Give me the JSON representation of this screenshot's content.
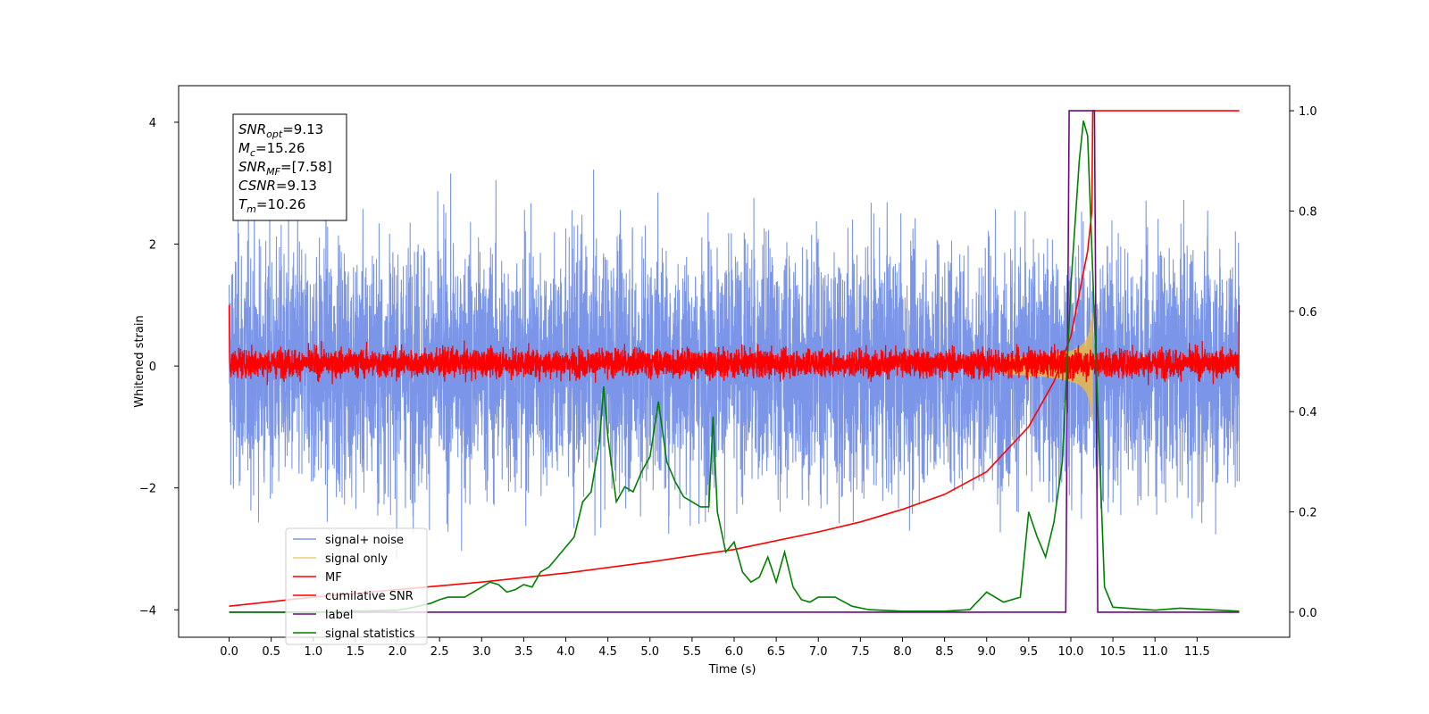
{
  "chart_data": {
    "type": "line",
    "title": "",
    "xlabel": "Time (s)",
    "ylabel": "Whitened strain",
    "ylabel_right": "",
    "xlim": [
      -0.6,
      12.6
    ],
    "ylim": [
      -4.45,
      4.6
    ],
    "ylim_right": [
      -0.05,
      1.05
    ],
    "x_ticks": [
      "0.0",
      "0.5",
      "1.0",
      "1.5",
      "2.0",
      "2.5",
      "3.0",
      "3.5",
      "4.0",
      "4.5",
      "5.0",
      "5.5",
      "6.0",
      "6.5",
      "7.0",
      "7.5",
      "8.0",
      "8.5",
      "9.0",
      "9.5",
      "10.0",
      "10.5",
      "11.0",
      "11.5"
    ],
    "y_ticks": [
      "−4",
      "−2",
      "0",
      "2",
      "4"
    ],
    "y_ticks_right": [
      "0.0",
      "0.2",
      "0.4",
      "0.6",
      "0.8",
      "1.0"
    ],
    "grid": false,
    "legend_position": "lower-left",
    "annotation": {
      "lines": [
        {
          "sym": "SNR",
          "sub": "opt",
          "value": "=9.13"
        },
        {
          "sym": "M",
          "sub": "c",
          "value": "=15.26"
        },
        {
          "sym": "SNR",
          "sub": "MF",
          "value": "=[7.58]"
        },
        {
          "sym": "CSNR",
          "sub": "",
          "value": "=9.13"
        },
        {
          "sym": "T",
          "sub": "m",
          "value": "=10.26"
        }
      ]
    },
    "series": [
      {
        "name": "signal+ noise",
        "axis": "left",
        "color": "#7b96e8",
        "description_range": [
          -3.2,
          4.15
        ],
        "x_range": [
          0,
          12
        ]
      },
      {
        "name": "signal only",
        "axis": "left",
        "color": "#e8b84a",
        "chirp_end": 10.26,
        "max_amplitude": 0.9
      },
      {
        "name": "MF",
        "axis": "left",
        "color": "#ff0000",
        "x_range": [
          0,
          12
        ]
      },
      {
        "name": "cumilative SNR",
        "axis": "right",
        "color": "#ff0000",
        "x": [
          0,
          1,
          2,
          3,
          4,
          5,
          6,
          7,
          7.5,
          8,
          8.5,
          9,
          9.5,
          9.8,
          10.0,
          10.2,
          10.25,
          10.26,
          12
        ],
        "y": [
          0.012,
          0.03,
          0.045,
          0.06,
          0.078,
          0.1,
          0.125,
          0.16,
          0.18,
          0.205,
          0.235,
          0.28,
          0.37,
          0.46,
          0.55,
          0.72,
          0.8,
          1.0,
          1.0
        ]
      },
      {
        "name": "label",
        "axis": "right",
        "color": "#6a0a7a",
        "x": [
          0,
          9.94,
          9.98,
          10.28,
          10.32,
          12
        ],
        "y": [
          0.0,
          0.0,
          1.0,
          1.0,
          0.0,
          0.0
        ]
      },
      {
        "name": "signal statistics",
        "axis": "right",
        "color": "#008000",
        "x": [
          0,
          1.0,
          2.0,
          2.2,
          2.4,
          2.5,
          2.6,
          2.8,
          3.0,
          3.1,
          3.2,
          3.3,
          3.4,
          3.5,
          3.6,
          3.7,
          3.8,
          3.9,
          4.0,
          4.1,
          4.2,
          4.3,
          4.4,
          4.45,
          4.5,
          4.6,
          4.7,
          4.8,
          4.9,
          5.0,
          5.1,
          5.15,
          5.2,
          5.3,
          5.4,
          5.5,
          5.6,
          5.7,
          5.75,
          5.8,
          5.9,
          6.0,
          6.1,
          6.2,
          6.3,
          6.4,
          6.5,
          6.6,
          6.7,
          6.8,
          6.9,
          7.0,
          7.2,
          7.4,
          7.6,
          8.0,
          8.5,
          8.8,
          9.0,
          9.2,
          9.4,
          9.5,
          9.6,
          9.7,
          9.8,
          9.9,
          10.0,
          10.1,
          10.15,
          10.2,
          10.3,
          10.4,
          10.5,
          11.0,
          11.3,
          12
        ],
        "y": [
          0.0,
          0.0,
          0.004,
          0.01,
          0.018,
          0.025,
          0.03,
          0.03,
          0.05,
          0.06,
          0.055,
          0.04,
          0.045,
          0.055,
          0.05,
          0.08,
          0.09,
          0.11,
          0.13,
          0.15,
          0.22,
          0.24,
          0.34,
          0.45,
          0.35,
          0.22,
          0.25,
          0.24,
          0.28,
          0.31,
          0.42,
          0.36,
          0.3,
          0.26,
          0.23,
          0.22,
          0.21,
          0.21,
          0.39,
          0.2,
          0.12,
          0.14,
          0.08,
          0.06,
          0.07,
          0.11,
          0.06,
          0.12,
          0.05,
          0.025,
          0.02,
          0.03,
          0.03,
          0.012,
          0.005,
          0.002,
          0.002,
          0.005,
          0.04,
          0.02,
          0.03,
          0.2,
          0.15,
          0.11,
          0.18,
          0.3,
          0.65,
          0.9,
          0.98,
          0.95,
          0.5,
          0.05,
          0.01,
          0.004,
          0.008,
          0.002
        ]
      }
    ]
  }
}
